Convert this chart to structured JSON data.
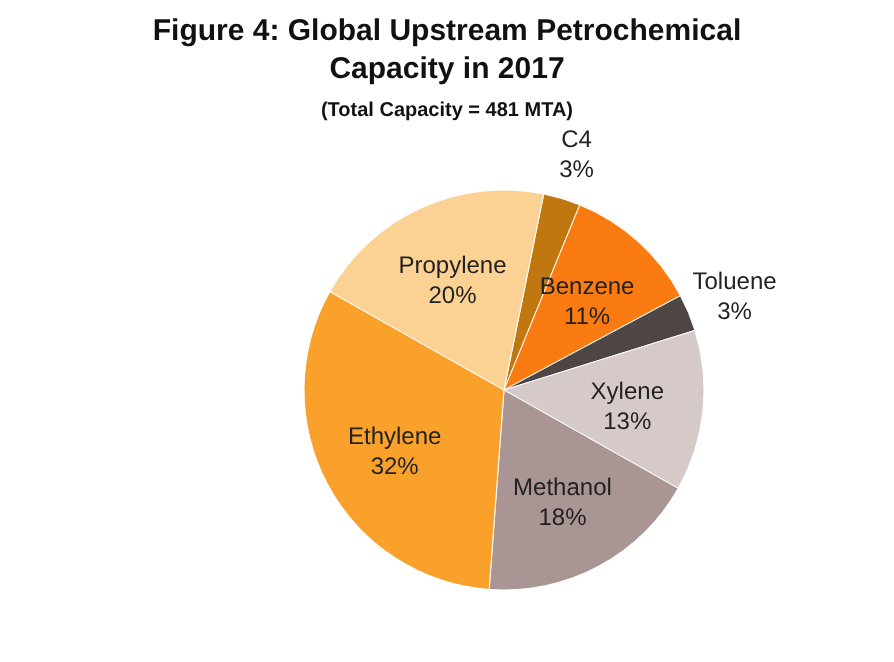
{
  "chart_data": {
    "type": "pie",
    "title": "Figure 4: Global Upstream Petrochemical Capacity in 2017",
    "subtitle": "(Total Capacity = 481 MTA)",
    "categories": [
      "C4",
      "Benzene",
      "Toluene",
      "Xylene",
      "Methanol",
      "Ethylene",
      "Propylene"
    ],
    "values": [
      3,
      11,
      3,
      13,
      18,
      32,
      20
    ],
    "value_labels": [
      "3%",
      "11%",
      "3%",
      "13%",
      "18%",
      "32%",
      "20%"
    ],
    "colors": [
      "#c0770f",
      "#fa7b12",
      "#4e4645",
      "#d5cac8",
      "#a99593",
      "#f9a12b",
      "#fcd294"
    ]
  }
}
